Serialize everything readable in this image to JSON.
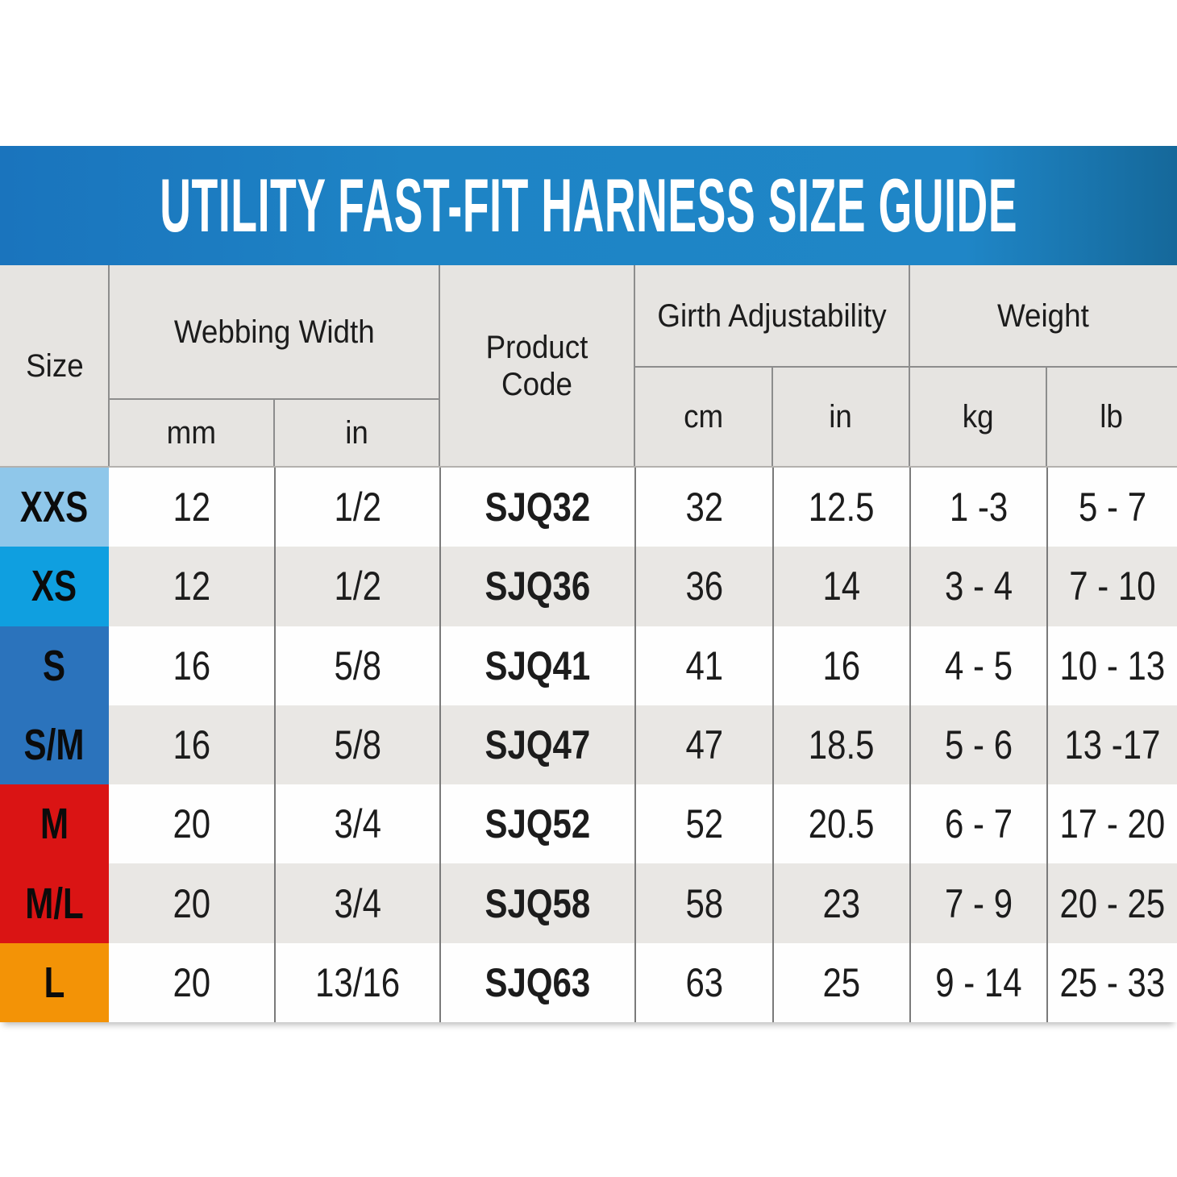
{
  "title_bar": {
    "title": "UTILITY FAST-FIT HARNESS SIZE GUIDE",
    "bg_left": "#1a74bd",
    "bg_mid": "#1f86c7",
    "bg_right": "#15689a",
    "text_color": "#ffffff"
  },
  "chart_data": {
    "type": "table",
    "title": "UTILITY FAST-FIT HARNESS SIZE GUIDE",
    "header": {
      "size": "Size",
      "webbing_width": "Webbing Width",
      "webbing_mm": "mm",
      "webbing_in": "in",
      "product_code": "Product Code",
      "girth": "Girth Adjustability",
      "girth_cm": "cm",
      "girth_in": "in",
      "weight": "Weight",
      "weight_kg": "kg",
      "weight_lb": "lb"
    },
    "rows": [
      {
        "size": "XXS",
        "mm": "12",
        "in": "1/2",
        "code": "SJQ32",
        "cm": "32",
        "in2": "12.5",
        "kg": "1 -3",
        "lb": "5 - 7",
        "swatch": "#8fc7ea",
        "bg": "#fefefe"
      },
      {
        "size": "XS",
        "mm": "12",
        "in": "1/2",
        "code": "SJQ36",
        "cm": "36",
        "in2": "14",
        "kg": "3 - 4",
        "lb": "7 - 10",
        "swatch": "#0f9fe0",
        "bg": "#e9e7e4"
      },
      {
        "size": "S",
        "mm": "16",
        "in": "5/8",
        "code": "SJQ41",
        "cm": "41",
        "in2": "16",
        "kg": "4 - 5",
        "lb": "10 - 13",
        "swatch": "#2b73bc",
        "bg": "#fefefe"
      },
      {
        "size": "S/M",
        "mm": "16",
        "in": "5/8",
        "code": "SJQ47",
        "cm": "47",
        "in2": "18.5",
        "kg": "5 - 6",
        "lb": "13 -17",
        "swatch": "#2b73bc",
        "bg": "#e9e7e4"
      },
      {
        "size": "M",
        "mm": "20",
        "in": "3/4",
        "code": "SJQ52",
        "cm": "52",
        "in2": "20.5",
        "kg": "6 - 7",
        "lb": "17 - 20",
        "swatch": "#da1414",
        "bg": "#fefefe"
      },
      {
        "size": "M/L",
        "mm": "20",
        "in": "3/4",
        "code": "SJQ58",
        "cm": "58",
        "in2": "23",
        "kg": "7 - 9",
        "lb": "20 - 25",
        "swatch": "#da1414",
        "bg": "#e9e7e4"
      },
      {
        "size": "L",
        "mm": "20",
        "in": "13/16",
        "code": "SJQ63",
        "cm": "63",
        "in2": "25",
        "kg": "9 - 14",
        "lb": "25 - 33",
        "swatch": "#f39306",
        "bg": "#fefefe"
      }
    ],
    "colors": {
      "header_bg": "#e6e4e1",
      "grid_line": "#7a7a7a",
      "light_line": "#b3b1ae",
      "text": "#1c1c1c",
      "row_white": "#fefefe",
      "row_gray": "#e9e7e4"
    },
    "layout_hints": {
      "column_groups": [
        "Size",
        "Webbing Width (mm, in)",
        "Product Code",
        "Girth Adjustability (cm, in)",
        "Weight (kg, lb)"
      ]
    }
  }
}
